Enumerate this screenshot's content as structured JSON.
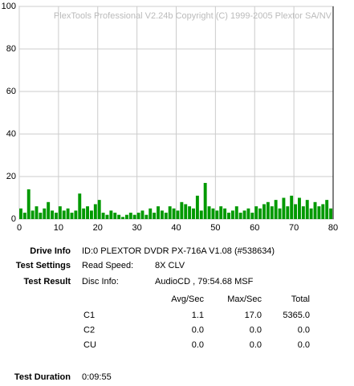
{
  "chart_data": {
    "type": "bar",
    "watermark": "PlexTools Professional V2.24b Copyright (C) 1999-2005 Plextor SA/NV",
    "x": [
      0,
      1,
      2,
      3,
      4,
      5,
      6,
      7,
      8,
      9,
      10,
      11,
      12,
      13,
      14,
      15,
      16,
      17,
      18,
      19,
      20,
      21,
      22,
      23,
      24,
      25,
      26,
      27,
      28,
      29,
      30,
      31,
      32,
      33,
      34,
      35,
      36,
      37,
      38,
      39,
      40,
      41,
      42,
      43,
      44,
      45,
      46,
      47,
      48,
      49,
      50,
      51,
      52,
      53,
      54,
      55,
      56,
      57,
      58,
      59,
      60,
      61,
      62,
      63,
      64,
      65,
      66,
      67,
      68,
      69,
      70,
      71,
      72,
      73,
      74,
      75,
      76,
      77,
      78,
      79
    ],
    "values": [
      5,
      3,
      14,
      4,
      6,
      3,
      5,
      8,
      4,
      3,
      6,
      4,
      5,
      3,
      4,
      12,
      5,
      6,
      4,
      7,
      9,
      3,
      2,
      4,
      3,
      2,
      1,
      2,
      3,
      2,
      3,
      4,
      2,
      5,
      3,
      6,
      4,
      3,
      6,
      5,
      4,
      8,
      7,
      6,
      5,
      11,
      4,
      17,
      6,
      5,
      4,
      6,
      5,
      3,
      4,
      6,
      3,
      4,
      5,
      3,
      6,
      5,
      7,
      8,
      6,
      9,
      5,
      10,
      6,
      11,
      7,
      10,
      6,
      9,
      5,
      8,
      6,
      7,
      9,
      5
    ],
    "color": "#009900",
    "xlim": [
      0,
      80
    ],
    "xticks": [
      0,
      10,
      20,
      30,
      40,
      50,
      60,
      70,
      80
    ],
    "ylim": [
      0,
      100
    ],
    "yticks": [
      0,
      20,
      40,
      60,
      80,
      100
    ],
    "grid": true
  },
  "drive_info": {
    "label": "Drive Info",
    "value": "ID:0 PLEXTOR DVDR PX-716A V1.08 (#538634)"
  },
  "test_settings": {
    "label": "Test Settings",
    "key": "Read Speed:",
    "value": "8X CLV"
  },
  "test_result": {
    "label": "Test Result",
    "key": "Disc Info:",
    "value": "AudioCD , 79:54.68 MSF"
  },
  "result_table": {
    "headers": [
      "Avg/Sec",
      "Max/Sec",
      "Total"
    ],
    "rows": [
      [
        "C1",
        "1.1",
        "17.0",
        "5365.0"
      ],
      [
        "C2",
        "0.0",
        "0.0",
        "0.0"
      ],
      [
        "CU",
        "0.0",
        "0.0",
        "0.0"
      ]
    ]
  },
  "test_duration": {
    "label": "Test Duration",
    "value": "0:09:55"
  }
}
